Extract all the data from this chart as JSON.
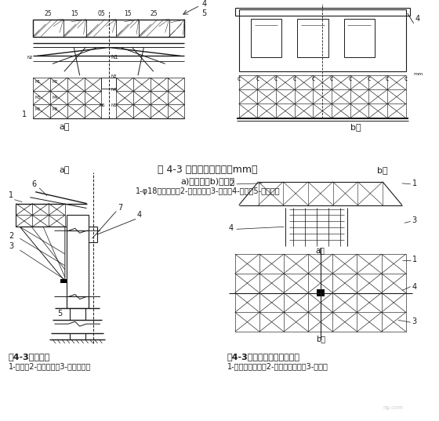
{
  "title_main": "图 4-3 扇形托架（单位：mm）",
  "subtitle_a": "a)顺桥向；b)横桥向",
  "subtitle_legend": "1-φ18预埋螺栓；2-预埋钢筋；3-硬木；4-箱梁；5-底模垫梁",
  "label_a": "a）",
  "label_b": "b）",
  "bottom_left_title": "图4-3高墩托架",
  "bottom_left_legend": "1-箱梁；2-圆柱形绞；3-承托槽钢；",
  "bottom_right_title": "图4-3墩顶预埋牛腿托架平台",
  "bottom_right_legend": "1-万能杆件托架；2-平台面层结构；3-桥墩；",
  "bg_color": "#ffffff",
  "line_color": "#1a1a1a",
  "text_color": "#1a1a1a"
}
